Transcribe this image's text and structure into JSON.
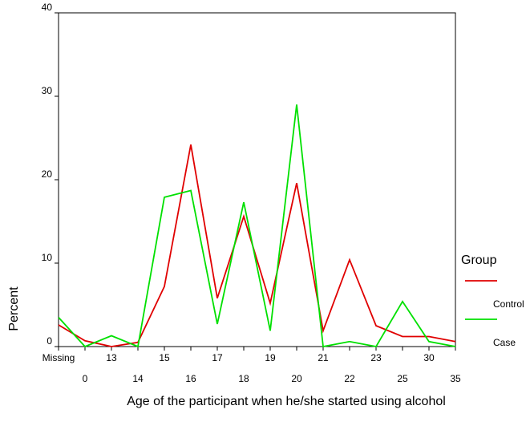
{
  "chart_data": {
    "type": "line",
    "categories": [
      "Missing",
      "0",
      "13",
      "14",
      "15",
      "16",
      "17",
      "18",
      "19",
      "20",
      "21",
      "22",
      "23",
      "25",
      "30",
      "35"
    ],
    "series": [
      {
        "name": "Control",
        "color": "#e00000",
        "values": [
          2.6,
          0.7,
          0,
          0.5,
          7.2,
          24.2,
          5.8,
          15.6,
          5.2,
          19.6,
          1.9,
          10.4,
          2.5,
          1.2,
          1.2,
          0.6
        ]
      },
      {
        "name": "Case",
        "color": "#00e000",
        "values": [
          3.5,
          0,
          1.3,
          0,
          17.9,
          18.7,
          2.7,
          17.3,
          1.9,
          29.0,
          0,
          0.6,
          0,
          5.4,
          0.6,
          0
        ]
      }
    ],
    "ylim": [
      0,
      40
    ],
    "yticks": [
      0,
      10,
      20,
      30,
      40
    ],
    "xlabel": "Age of the participant when he/she started using alcohol",
    "ylabel": "Percent",
    "legend_title": "Group"
  }
}
